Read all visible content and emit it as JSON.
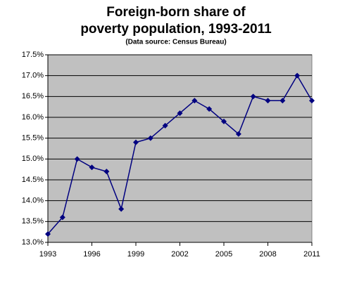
{
  "chart_data": {
    "type": "line",
    "title": [
      "Foreign-born share of",
      "poverty population, 1993-2011"
    ],
    "subtitle": "(Data source: Census Bureau)",
    "x": [
      1993,
      1994,
      1995,
      1996,
      1997,
      1998,
      1999,
      2000,
      2001,
      2002,
      2003,
      2004,
      2005,
      2006,
      2007,
      2008,
      2009,
      2010,
      2011
    ],
    "values": [
      13.2,
      13.6,
      15.0,
      14.8,
      14.7,
      13.8,
      15.4,
      15.5,
      15.8,
      16.1,
      16.4,
      16.2,
      15.9,
      15.6,
      16.5,
      16.4,
      16.4,
      17.0,
      16.4
    ],
    "color": "#000080",
    "xlim": [
      1993,
      2011
    ],
    "xticks": [
      1993,
      1996,
      1999,
      2002,
      2005,
      2008,
      2011
    ],
    "ylim": [
      13,
      17.5
    ],
    "yticks": [
      {
        "value": 13,
        "label": "13.0%"
      },
      {
        "value": 13.5,
        "label": "13.5%"
      },
      {
        "value": 14,
        "label": "14.0%"
      },
      {
        "value": 14.5,
        "label": "14.5%"
      },
      {
        "value": 15,
        "label": "15.0%"
      },
      {
        "value": 15.5,
        "label": "15.5%"
      },
      {
        "value": 16,
        "label": "16.0%"
      },
      {
        "value": 16.5,
        "label": "16.5%"
      },
      {
        "value": 17,
        "label": "17.0%"
      },
      {
        "value": 17.5,
        "label": "17.5%"
      }
    ],
    "grid": true
  }
}
